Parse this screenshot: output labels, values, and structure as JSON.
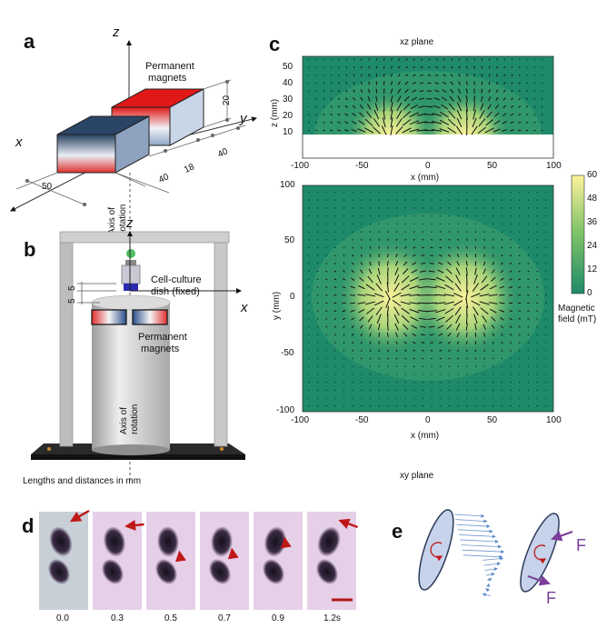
{
  "panel_a": {
    "letter": "a",
    "z_axis": "z",
    "y_axis": "y",
    "x_axis": "x",
    "magnets_label_1": "Permanent",
    "magnets_label_2": "magnets",
    "dims": [
      "20",
      "40",
      "18",
      "40",
      "50"
    ],
    "rotation_label_1": "Axis of",
    "rotation_label_2": "rotation"
  },
  "panel_b": {
    "letter": "b",
    "z_axis": "z",
    "x_axis": "x",
    "dish_label_1": "Cell-culture",
    "dish_label_2": "dish (fixed)",
    "dim_5a": "5",
    "dim_5b": "5",
    "magnets_label_1": "Permanent",
    "magnets_label_2": "magnets",
    "rotation_label_1": "Axis of",
    "rotation_label_2": "rotation",
    "footer": "Lengths and distances in  mm"
  },
  "panel_c": {
    "letter": "c",
    "xz_title": "xz plane",
    "xy_title": "xy plane",
    "xz_ylabel": "z (mm)",
    "xz_xlabel": "x (mm)",
    "xy_ylabel": "y (mm)",
    "xy_xlabel": "x (mm)",
    "colorbar_label_1": "Magnetic",
    "colorbar_label_2": "field (mT)",
    "colorbar_ticks": [
      "60",
      "48",
      "36",
      "24",
      "12",
      "0"
    ],
    "colors": {
      "low": "#1e8a6a",
      "mid": "#6fbd66",
      "high": "#fbf29a"
    }
  },
  "panel_d": {
    "letter": "d",
    "times": [
      "0.0",
      "0.3",
      "0.5",
      "0.7",
      "0.9",
      "1.2s"
    ],
    "arrow_color": "#c01818",
    "scalebar_color": "#b01818"
  },
  "panel_e": {
    "letter": "e",
    "force_label_1": "F",
    "force_label_2": "F",
    "force_color": "#7a3e9a"
  },
  "chart_data": [
    {
      "type": "heatmap",
      "title": "xz plane",
      "xlabel": "x (mm)",
      "ylabel": "z (mm)",
      "xlim": [
        -100,
        100
      ],
      "ylim": [
        0,
        55
      ],
      "xticks": [
        -100,
        -50,
        0,
        50,
        100
      ],
      "yticks": [
        10,
        20,
        30,
        40,
        50
      ],
      "colorbar": {
        "label": "Magnetic field (mT)",
        "range": [
          0,
          60
        ],
        "ticks": [
          0,
          12,
          24,
          36,
          48,
          60
        ]
      }
    },
    {
      "type": "heatmap",
      "title": "xy plane",
      "xlabel": "x (mm)",
      "ylabel": "y (mm)",
      "xlim": [
        -100,
        100
      ],
      "ylim": [
        -100,
        100
      ],
      "xticks": [
        -100,
        -50,
        0,
        50,
        100
      ],
      "yticks": [
        -100,
        -50,
        0,
        50,
        100
      ],
      "colorbar": {
        "label": "Magnetic field (mT)",
        "range": [
          0,
          60
        ],
        "ticks": [
          0,
          12,
          24,
          36,
          48,
          60
        ]
      }
    }
  ]
}
